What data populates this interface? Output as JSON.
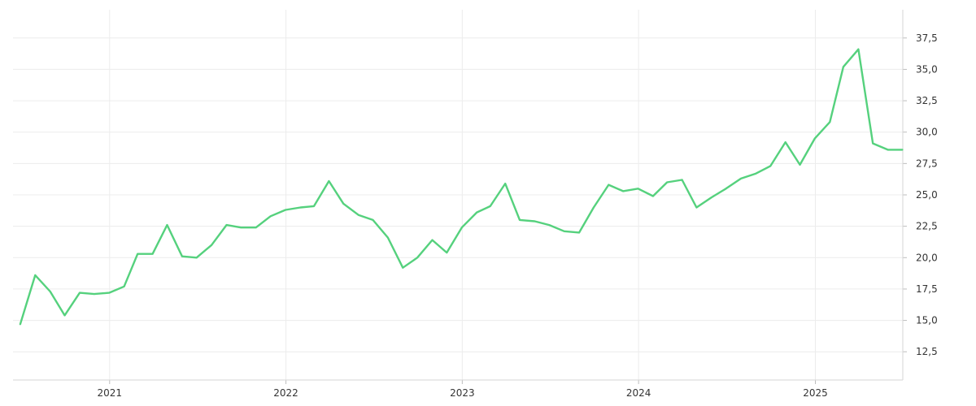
{
  "chart_data": {
    "type": "line",
    "title": "",
    "xlabel": "",
    "ylabel": "",
    "x_range": [
      "2020-06-15",
      "2025-07-01"
    ],
    "ylim": [
      10.25,
      39.75
    ],
    "y_ticks": [
      12.5,
      15,
      17.5,
      20,
      22.5,
      25,
      27.5,
      30,
      32.5,
      35,
      37.5
    ],
    "y_tick_labels": [
      "12,5",
      "15,0",
      "17,5",
      "20,0",
      "22,5",
      "25,0",
      "27,5",
      "30,0",
      "32,5",
      "35,0",
      "37,5"
    ],
    "x_ticks": [
      "2021-01-01",
      "2022-01-01",
      "2023-01-01",
      "2024-01-01",
      "2025-01-01"
    ],
    "x_tick_labels": [
      "2021",
      "2022",
      "2023",
      "2024",
      "2025"
    ],
    "grid": true,
    "y_axis_position": "right",
    "line_color": "#55d17d",
    "series": [
      {
        "x": [
          "2020-06-30",
          "2020-07-31",
          "2020-08-31",
          "2020-09-30",
          "2020-10-31",
          "2020-11-30",
          "2020-12-31",
          "2021-01-31",
          "2021-02-28",
          "2021-03-31",
          "2021-04-30",
          "2021-05-31",
          "2021-06-30",
          "2021-07-31",
          "2021-08-31",
          "2021-09-30",
          "2021-10-31",
          "2021-11-30",
          "2021-12-31",
          "2022-01-31",
          "2022-02-28",
          "2022-03-31",
          "2022-04-30",
          "2022-05-31",
          "2022-06-30",
          "2022-07-31",
          "2022-08-31",
          "2022-09-30",
          "2022-10-31",
          "2022-11-30",
          "2022-12-31",
          "2023-01-31",
          "2023-02-28",
          "2023-03-31",
          "2023-04-30",
          "2023-05-31",
          "2023-06-30",
          "2023-07-31",
          "2023-08-31",
          "2023-09-30",
          "2023-10-31",
          "2023-11-30",
          "2023-12-31",
          "2024-01-31",
          "2024-02-29",
          "2024-03-31",
          "2024-04-30",
          "2024-05-31",
          "2024-06-30",
          "2024-07-31",
          "2024-08-31",
          "2024-09-30",
          "2024-10-31",
          "2024-11-30",
          "2024-12-31",
          "2025-01-31",
          "2025-02-28",
          "2025-03-31",
          "2025-04-30",
          "2025-05-31",
          "2025-06-30"
        ],
        "values": [
          14.7,
          18.6,
          17.3,
          15.4,
          17.2,
          17.1,
          17.2,
          17.7,
          20.3,
          20.3,
          22.6,
          20.1,
          20.0,
          21.0,
          22.6,
          22.4,
          22.4,
          23.3,
          23.8,
          24.0,
          24.1,
          26.1,
          24.3,
          23.4,
          23.0,
          21.6,
          19.2,
          20.0,
          21.4,
          20.4,
          22.4,
          23.6,
          24.1,
          25.9,
          23.0,
          22.9,
          22.6,
          22.1,
          22.0,
          24.0,
          25.8,
          25.3,
          25.5,
          24.9,
          26.0,
          26.2,
          24.0,
          24.8,
          25.5,
          26.3,
          26.7,
          27.3,
          29.2,
          27.4,
          29.5,
          30.8,
          35.2,
          36.6,
          29.1,
          28.6,
          28.6
        ]
      }
    ]
  }
}
